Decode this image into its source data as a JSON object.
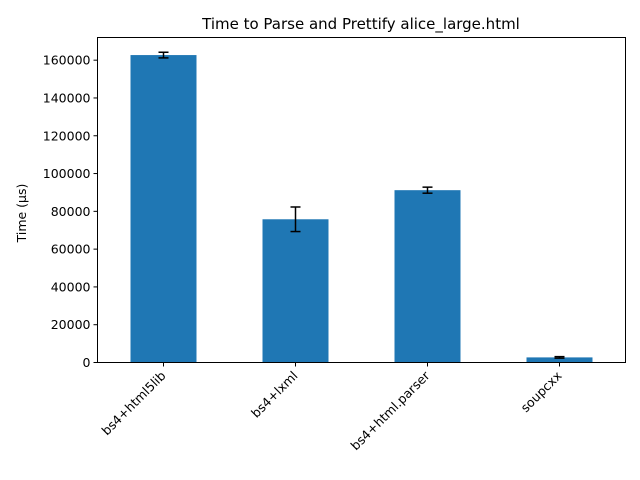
{
  "chart_data": {
    "type": "bar",
    "title": "Time to Parse and Prettify alice_large.html",
    "xlabel": "",
    "ylabel": "Time (µs)",
    "ylim": [
      0,
      172000
    ],
    "yticks": [
      0,
      20000,
      40000,
      60000,
      80000,
      100000,
      120000,
      140000,
      160000
    ],
    "categories": [
      "bs4+html5lib",
      "bs4+lxml",
      "bs4+html.parser",
      "soupcxx"
    ],
    "values": [
      162700,
      75800,
      91200,
      2700
    ],
    "errors": [
      1500,
      6500,
      1600,
      400
    ],
    "bar_color": "#1f77b4",
    "grid": false,
    "legend": false
  }
}
